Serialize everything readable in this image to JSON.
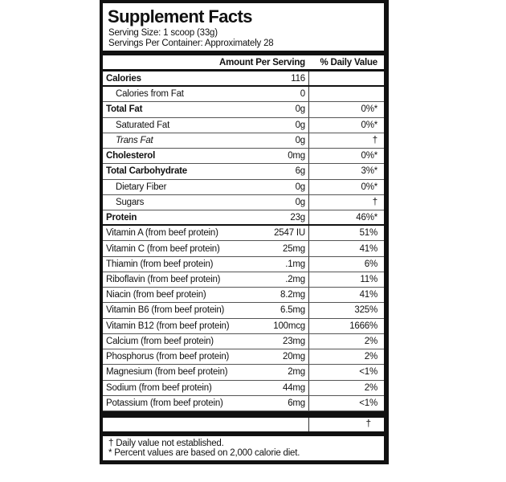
{
  "title": "Supplement Facts",
  "serving_size": "Serving Size: 1 scoop (33g)",
  "servings_per_container": "Servings Per Container: Approximately 28",
  "table": {
    "header": [
      "Amount Per Serving",
      "% Daily Value"
    ],
    "rows": [
      [
        "Calories",
        "116"
      ],
      [
        "Calories from Fat",
        "0"
      ],
      [
        "Total Fat",
        "0g",
        "0%*"
      ],
      [
        "Saturated Fat",
        "0g",
        "0%*"
      ],
      [
        "Trans Fat",
        "0g",
        "†"
      ],
      [
        "Cholesterol",
        "0mg",
        "0%*"
      ],
      [
        "Total Carbohydrate",
        "6g",
        "3%*"
      ],
      [
        "Dietary Fiber",
        "0g",
        "0%*"
      ],
      [
        "Sugars",
        "0g",
        "†"
      ],
      [
        "Protein",
        "23g",
        "46%*"
      ],
      [
        "Vitamin A (from beef protein)",
        "2547 IU",
        "51%"
      ],
      [
        "Vitamin C (from beef protein)",
        "25mg",
        "41%"
      ],
      [
        "Thiamin (from beef protein)",
        ".1mg",
        "6%"
      ],
      [
        "Riboflavin (from beef protein)",
        ".2mg",
        "11%"
      ],
      [
        "Niacin (from beef protein)",
        "8.2mg",
        "41%"
      ],
      [
        "Vitamin B6 (from beef protein)",
        "6.5mg",
        "325%"
      ],
      [
        "Vitamin B12 (from beef protein)",
        "100mcg",
        "1666%"
      ],
      [
        "Calcium (from beef protein)",
        "23mg",
        "2%"
      ],
      [
        "Phosphorus (from beef protein)",
        "20mg",
        "2%"
      ],
      [
        "Magnesium (from beef protein)",
        "2mg",
        "<1%"
      ],
      [
        "Sodium (from beef protein)",
        "44mg",
        "2%"
      ],
      [
        "Potassium (from beef protein)",
        "6mg",
        "<1%"
      ]
    ],
    "extra_row": "†"
  },
  "footnotes": [
    "† Daily value not established.",
    "* Percent values are based on 2,000 calorie diet."
  ]
}
